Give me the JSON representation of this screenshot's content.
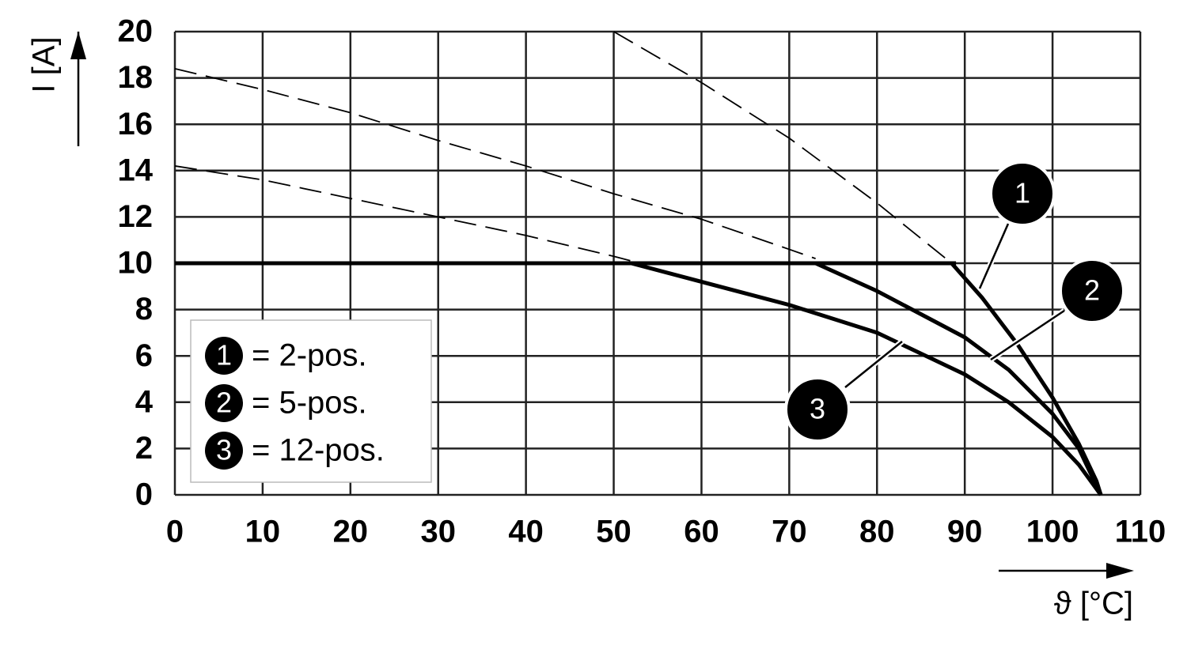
{
  "chart_data": {
    "type": "line",
    "y_label": "I [A]",
    "x_label": "ϑ [°C]",
    "xlim": [
      0,
      110
    ],
    "xticks": [
      0,
      10,
      20,
      30,
      40,
      50,
      60,
      70,
      80,
      90,
      100,
      110
    ],
    "ylim": [
      0,
      20
    ],
    "yticks": [
      0,
      2,
      4,
      6,
      8,
      10,
      12,
      14,
      16,
      18,
      20
    ],
    "grid": true,
    "limit": {
      "x": [
        0,
        89
      ],
      "values": [
        10,
        10
      ],
      "color": "#000000"
    },
    "series": [
      {
        "name": "= 2-pos.",
        "badge": "1",
        "color": "#000000",
        "x": [
          88.5,
          92,
          96,
          100,
          103,
          105,
          105.5
        ],
        "values": [
          10,
          8.5,
          6.5,
          4.2,
          2.2,
          0.6,
          0
        ],
        "dashed_x": [
          50,
          60,
          70,
          80,
          88.5
        ],
        "dashed_values": [
          20,
          17.8,
          15.4,
          12.6,
          10
        ]
      },
      {
        "name": "= 5-pos.",
        "badge": "2",
        "color": "#000000",
        "x": [
          73,
          80,
          90,
          95,
          100,
          103,
          105.5
        ],
        "values": [
          10,
          8.8,
          6.8,
          5.4,
          3.5,
          2,
          0
        ],
        "dashed_x": [
          0,
          10,
          20,
          30,
          40,
          50,
          60,
          70,
          73
        ],
        "dashed_values": [
          18.4,
          17.5,
          16.5,
          15.3,
          14.2,
          13.0,
          11.9,
          10.6,
          10.2
        ]
      },
      {
        "name": "= 12-pos.",
        "badge": "3",
        "color": "#000000",
        "x": [
          52,
          60,
          70,
          80,
          90,
          95,
          100,
          103,
          105.5
        ],
        "values": [
          10,
          9.2,
          8.2,
          7.0,
          5.2,
          4.0,
          2.5,
          1.3,
          0
        ],
        "dashed_x": [
          0,
          10,
          20,
          30,
          40,
          50,
          52
        ],
        "dashed_values": [
          14.2,
          13.6,
          12.8,
          12.0,
          11.2,
          10.3,
          10.1
        ]
      }
    ]
  }
}
